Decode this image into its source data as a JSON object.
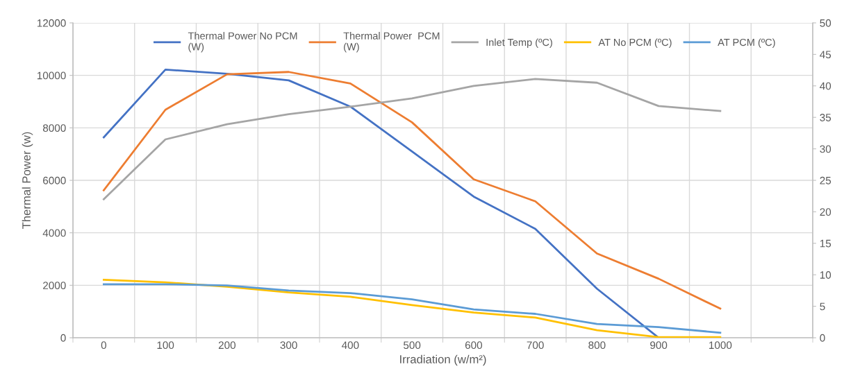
{
  "chart_data": {
    "type": "line",
    "xlabel": "Irradiation (w/m²)",
    "ylabel": "Thermal Power (w)",
    "categories": [
      "0",
      "100",
      "200",
      "300",
      "400",
      "500",
      "600",
      "700",
      "800",
      "900",
      "1000",
      null
    ],
    "series": [
      {
        "name": "Thermal Power No PCM\n(W)",
        "color": "#4472c4",
        "values": [
          7640,
          10220,
          10060,
          9810,
          8810,
          7100,
          5380,
          4150,
          1870,
          0,
          null,
          null
        ]
      },
      {
        "name": "Thermal Power  PCM\n(W)",
        "color": "#ed7d31",
        "values": [
          5620,
          8690,
          10040,
          10130,
          9690,
          8210,
          6040,
          5200,
          3210,
          2250,
          1110,
          null
        ]
      },
      {
        "name": "Inlet Temp (ºC)",
        "color": "#a5a5a5",
        "axis": "y2",
        "values": [
          22.0,
          31.5,
          33.9,
          35.5,
          36.7,
          38.0,
          40.0,
          41.1,
          40.5,
          36.8,
          36.0,
          null
        ]
      },
      {
        "name": "AT No PCM (ºC)",
        "color": "#ffc000",
        "axis": "y2",
        "values": [
          9.2,
          8.8,
          8.1,
          7.2,
          6.5,
          5.2,
          4.0,
          3.2,
          1.2,
          0.1,
          0.1,
          null
        ]
      },
      {
        "name": "AT PCM (ºC)",
        "color": "#5b9bd5",
        "axis": "y2",
        "values": [
          8.5,
          8.5,
          8.3,
          7.5,
          7.1,
          6.1,
          4.5,
          3.8,
          2.2,
          1.7,
          0.8,
          null
        ]
      }
    ],
    "ylim": [
      0,
      12000
    ],
    "yticks": [
      0,
      2000,
      4000,
      6000,
      8000,
      10000,
      12000
    ],
    "y2lim": [
      0,
      50
    ],
    "y2ticks": [
      0,
      5,
      10,
      15,
      20,
      25,
      30,
      35,
      40,
      45,
      50
    ],
    "grid": true,
    "legend": "top",
    "marker": "none",
    "line_style": "solid"
  }
}
